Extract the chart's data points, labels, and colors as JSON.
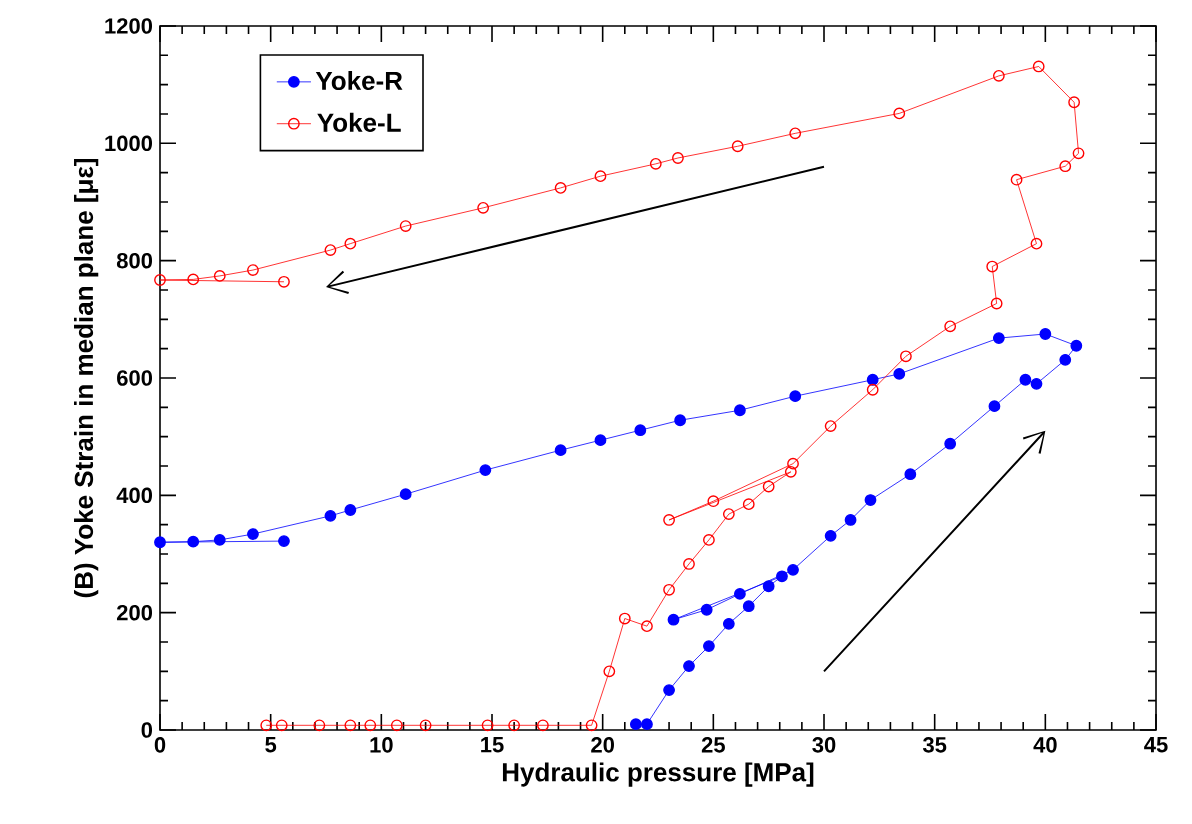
{
  "chart_data": {
    "type": "line",
    "xlabel": "Hydraulic pressure [MPa]",
    "ylabel": "(B) Yoke Strain in median plane [με]",
    "xlim": [
      0,
      45
    ],
    "ylim": [
      0,
      1200
    ],
    "xticks": [
      0,
      5,
      10,
      15,
      20,
      25,
      30,
      35,
      40,
      45
    ],
    "yticks": [
      0,
      200,
      400,
      600,
      800,
      1000,
      1200
    ],
    "legend": "top left",
    "marker": "circle",
    "line_style": "solid",
    "grid": false,
    "series": [
      {
        "name": "Yoke-R",
        "color": "#0000ff",
        "x": [
          21.5,
          22,
          23,
          23.9,
          24.8,
          25.7,
          26.6,
          27.5,
          28.1,
          23.2,
          24.7,
          26.2,
          28.6,
          30.3,
          31.2,
          32.1,
          33.9,
          35.7,
          37.7,
          39.1,
          39.6,
          40.9,
          41.4,
          40.0,
          37.9,
          33.4,
          32.2,
          28.7,
          26.2,
          23.5,
          21.7,
          19.9,
          18.1,
          14.7,
          11.1,
          8.6,
          7.7,
          4.2,
          2.7,
          1.5,
          0,
          5.6
        ],
        "values": [
          10,
          10,
          68,
          109,
          143,
          181,
          211,
          245,
          262,
          188,
          205,
          232,
          273,
          331,
          358,
          392,
          436,
          488,
          552,
          597,
          590,
          631,
          655,
          675,
          668,
          607,
          597,
          569,
          545,
          528,
          511,
          494,
          477,
          443,
          402,
          375,
          365,
          334,
          324,
          321,
          320,
          322
        ]
      },
      {
        "name": "Yoke-L",
        "color": "#ff0000",
        "x": [
          4.8,
          5.5,
          7.2,
          8.6,
          9.5,
          10.7,
          12,
          14.8,
          16,
          17.3,
          19.5,
          20.3,
          21,
          22,
          23,
          23.9,
          24.8,
          25.7,
          26.6,
          27.5,
          28.5,
          23,
          25,
          28.6,
          30.3,
          32.2,
          33.7,
          35.7,
          37.8,
          37.6,
          39.6,
          38.7,
          40.9,
          41.5,
          41.3,
          39.7,
          37.9,
          33.4,
          28.7,
          26.1,
          23.4,
          22.4,
          19.9,
          18.1,
          14.6,
          11.1,
          8.6,
          7.7,
          4.2,
          2.7,
          1.5,
          0,
          5.6
        ],
        "values": [
          8,
          8,
          8,
          8,
          8,
          8,
          8,
          8,
          8,
          8,
          8,
          100,
          190,
          177,
          239,
          283,
          324,
          368,
          385,
          415,
          440,
          358,
          390,
          454,
          518,
          580,
          637,
          688,
          727,
          790,
          829,
          938,
          961,
          983,
          1070,
          1131,
          1115,
          1051,
          1017,
          995,
          975,
          965,
          944,
          924,
          890,
          859,
          829,
          818,
          784,
          774,
          768,
          767,
          764
        ]
      }
    ]
  }
}
